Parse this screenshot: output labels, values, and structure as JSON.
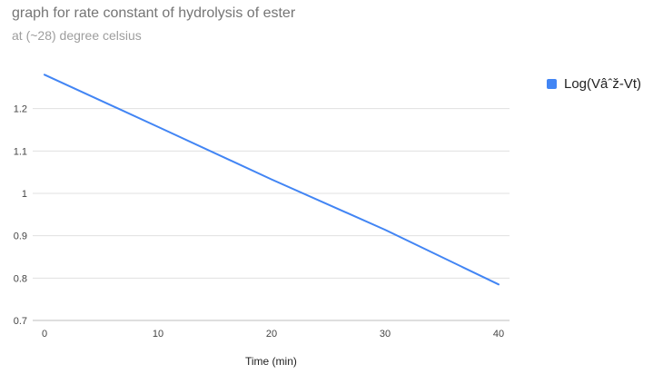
{
  "chart_data": {
    "type": "line",
    "title": "graph for rate constant of hydrolysis of ester",
    "subtitle": "at (~28) degree celsius",
    "xlabel": "Time (min)",
    "ylabel": "",
    "x": [
      0,
      10,
      20,
      30,
      40
    ],
    "series": [
      {
        "name": "Log(Vâˆž-Vt)",
        "values": [
          1.28,
          1.157,
          1.033,
          0.914,
          0.785
        ]
      }
    ],
    "xlim": [
      0,
      40
    ],
    "ylim": [
      0.7,
      1.3
    ],
    "xticks": [
      0,
      10,
      20,
      30,
      40
    ],
    "yticks": [
      0.7,
      0.8,
      0.9,
      1,
      1.1,
      1.2
    ],
    "grid": true,
    "legend": "right",
    "colors": {
      "series": "#4285f4",
      "grid": "#e0e0e0",
      "baseline": "#bdbdbd",
      "tick_text": "#444444"
    }
  }
}
